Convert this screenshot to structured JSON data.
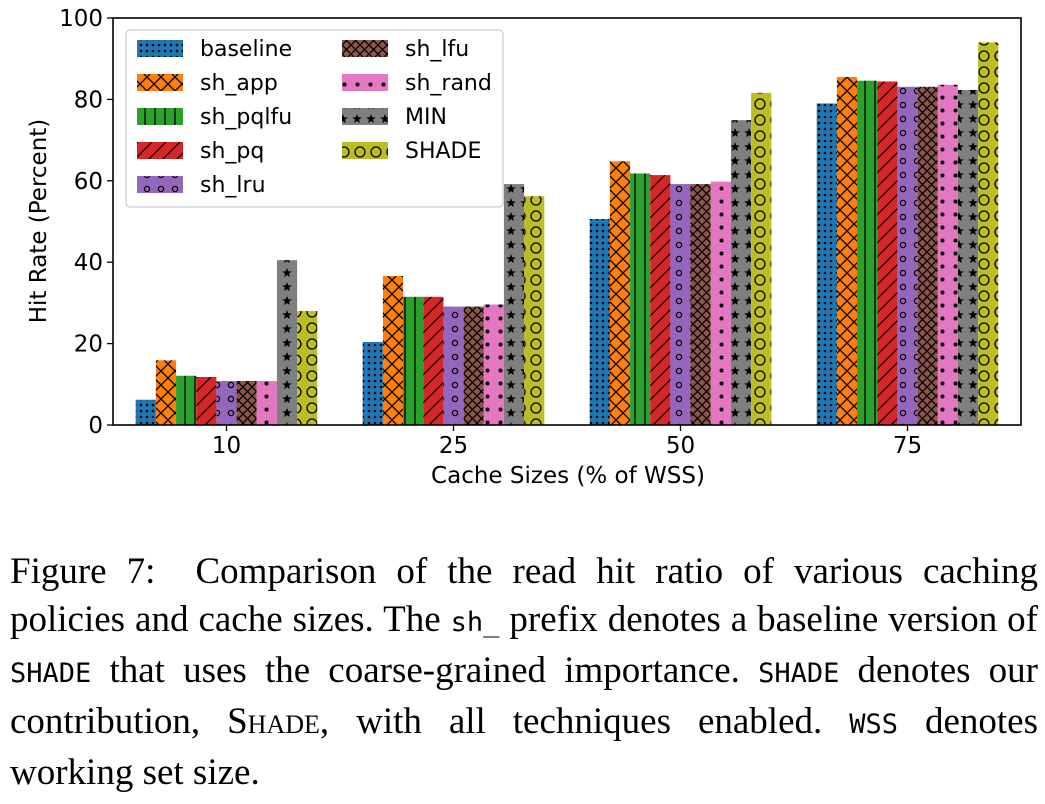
{
  "chart_data": {
    "type": "bar",
    "xlabel": "Cache Sizes (% of WSS)",
    "ylabel": "Hit Rate (Percent)",
    "ylim": [
      0,
      100
    ],
    "yticks": [
      "0",
      "20",
      "40",
      "60",
      "80",
      "100"
    ],
    "categories": [
      "10",
      "25",
      "50",
      "75"
    ],
    "legend_position": "top-left",
    "grid": false,
    "series": [
      {
        "name": "baseline",
        "color": "#1f77b4",
        "pattern": "dots",
        "values": [
          6.2,
          20.4,
          50.6,
          79.0
        ]
      },
      {
        "name": "sh_app",
        "color": "#ff7f0e",
        "pattern": "cross",
        "values": [
          15.9,
          36.6,
          64.8,
          85.5
        ]
      },
      {
        "name": "sh_pqlfu",
        "color": "#2ca02c",
        "pattern": "vertical",
        "values": [
          12.1,
          31.5,
          61.8,
          84.6
        ]
      },
      {
        "name": "sh_pq",
        "color": "#d62728",
        "pattern": "diagonal",
        "values": [
          11.8,
          31.5,
          61.4,
          84.4
        ]
      },
      {
        "name": "sh_lru",
        "color": "#9467bd",
        "pattern": "small-circles",
        "values": [
          10.8,
          29.1,
          59.2,
          83.1
        ]
      },
      {
        "name": "sh_lfu",
        "color": "#8c564b",
        "pattern": "dense-cross",
        "values": [
          10.8,
          29.1,
          59.2,
          83.1
        ]
      },
      {
        "name": "sh_rand",
        "color": "#e377c2",
        "pattern": "sparse-dots",
        "values": [
          10.8,
          29.6,
          59.8,
          83.6
        ]
      },
      {
        "name": "MIN",
        "color": "#7f7f7f",
        "pattern": "stars",
        "values": [
          40.5,
          59.2,
          74.9,
          82.3
        ]
      },
      {
        "name": "SHADE",
        "color": "#bcbd22",
        "pattern": "large-circles",
        "values": [
          28.0,
          56.2,
          81.6,
          94.0
        ]
      }
    ]
  },
  "caption": {
    "figure_label": "Figure 7:",
    "text_1": "Comparison of the read hit ratio of various caching policies and cache sizes. The",
    "code_sh": "sh_",
    "text_2": "prefix denotes a baseline version of",
    "code_shade_1": "SHADE",
    "text_3": "that uses the coarse-grained importance.",
    "code_shade_2": "SHADE",
    "text_4": "denotes our contribution,",
    "smallcaps_shade": "Shade",
    "text_5": ", with all techniques enabled.",
    "code_wss": "WSS",
    "text_6": "denotes working set size."
  }
}
